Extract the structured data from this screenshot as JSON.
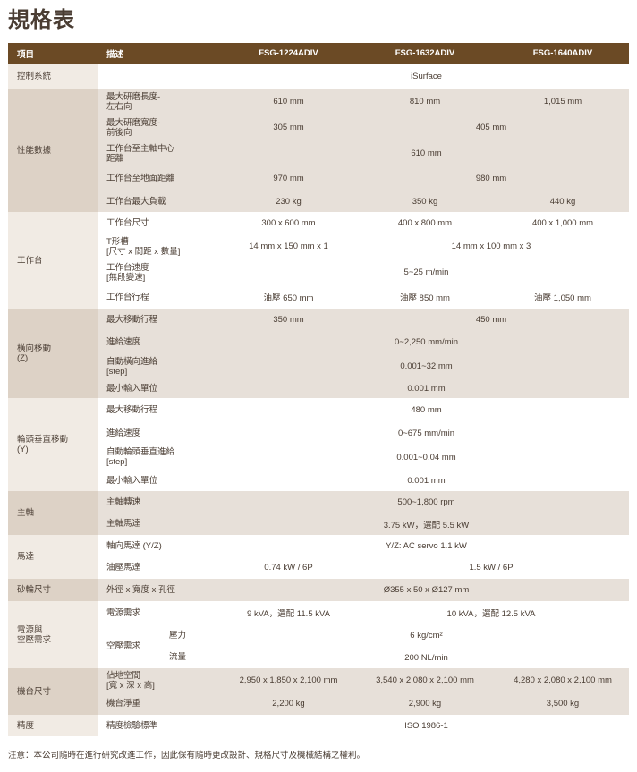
{
  "title": "規格表",
  "header": {
    "item": "項目",
    "desc": "描述",
    "models": [
      "FSG-1224ADIV",
      "FSG-1632ADIV",
      "FSG-1640ADIV"
    ]
  },
  "colors": {
    "header_bg": "#6b4a25",
    "shaded_row": "#e7e0d9",
    "category_shaded": "#ddd2c6",
    "category_plain": "#f1ebe4"
  },
  "groups": [
    {
      "category": "控制系統",
      "shaded": false,
      "rows": [
        {
          "desc": "",
          "values": [
            {
              "text": "iSurface",
              "span": 3
            }
          ]
        }
      ]
    },
    {
      "category": "性能數據",
      "shaded": true,
      "rows": [
        {
          "desc": "最大研磨長度-\n左右向",
          "values": [
            {
              "text": "610 mm",
              "span": 1
            },
            {
              "text": "810 mm",
              "span": 1
            },
            {
              "text": "1,015 mm",
              "span": 1
            }
          ]
        },
        {
          "desc": "最大研磨寬度-\n前後向",
          "values": [
            {
              "text": "305 mm",
              "span": 1
            },
            {
              "text": "405 mm",
              "span": 2
            }
          ]
        },
        {
          "desc": "工作台至主軸中心\n距離",
          "values": [
            {
              "text": "610 mm",
              "span": 3
            }
          ]
        },
        {
          "desc": "工作台至地面距離",
          "values": [
            {
              "text": "970 mm",
              "span": 1
            },
            {
              "text": "980 mm",
              "span": 2
            }
          ]
        },
        {
          "desc": "工作台最大負載",
          "values": [
            {
              "text": "230 kg",
              "span": 1
            },
            {
              "text": "350 kg",
              "span": 1
            },
            {
              "text": "440 kg",
              "span": 1
            }
          ]
        }
      ]
    },
    {
      "category": "工作台",
      "shaded": false,
      "rows": [
        {
          "desc": "工作台尺寸",
          "values": [
            {
              "text": "300 x 600 mm",
              "span": 1
            },
            {
              "text": "400 x 800 mm",
              "span": 1
            },
            {
              "text": "400 x 1,000 mm",
              "span": 1
            }
          ]
        },
        {
          "desc": "T形槽\n[尺寸 x 間距 x 數量]",
          "values": [
            {
              "text": "14 mm x 150 mm x 1",
              "span": 1
            },
            {
              "text": "14 mm x 100 mm x 3",
              "span": 2
            }
          ]
        },
        {
          "desc": "工作台速度\n[無段變速]",
          "values": [
            {
              "text": "5~25 m/min",
              "span": 3
            }
          ]
        },
        {
          "desc": "工作台行程",
          "values": [
            {
              "text": "油壓 650 mm",
              "span": 1
            },
            {
              "text": "油壓 850 mm",
              "span": 1
            },
            {
              "text": "油壓 1,050 mm",
              "span": 1
            }
          ]
        }
      ]
    },
    {
      "category": "橫向移動\n(Z)",
      "shaded": true,
      "rows": [
        {
          "desc": "最大移動行程",
          "values": [
            {
              "text": "350 mm",
              "span": 1
            },
            {
              "text": "450 mm",
              "span": 2
            }
          ]
        },
        {
          "desc": "進給速度",
          "values": [
            {
              "text": "0~2,250 mm/min",
              "span": 3
            }
          ]
        },
        {
          "desc": "自動橫向進給\n[step]",
          "values": [
            {
              "text": "0.001~32 mm",
              "span": 3
            }
          ]
        },
        {
          "desc": "最小輸入單位",
          "values": [
            {
              "text": "0.001 mm",
              "span": 3
            }
          ]
        }
      ]
    },
    {
      "category": "輪頭垂直移動\n(Y)",
      "shaded": false,
      "rows": [
        {
          "desc": "最大移動行程",
          "values": [
            {
              "text": "480 mm",
              "span": 3
            }
          ]
        },
        {
          "desc": "進給速度",
          "values": [
            {
              "text": "0~675 mm/min",
              "span": 3
            }
          ]
        },
        {
          "desc": "自動輪頭垂直進給\n[step]",
          "values": [
            {
              "text": "0.001~0.04 mm",
              "span": 3
            }
          ]
        },
        {
          "desc": "最小輸入單位",
          "values": [
            {
              "text": "0.001 mm",
              "span": 3
            }
          ]
        }
      ]
    },
    {
      "category": "主軸",
      "shaded": true,
      "rows": [
        {
          "desc": "主軸轉速",
          "values": [
            {
              "text": "500~1,800 rpm",
              "span": 3
            }
          ]
        },
        {
          "desc": "主軸馬達",
          "values": [
            {
              "text": "3.75 kW，選配 5.5 kW",
              "span": 3
            }
          ]
        }
      ]
    },
    {
      "category": "馬達",
      "shaded": false,
      "rows": [
        {
          "desc": "軸向馬達 (Y/Z)",
          "values": [
            {
              "text": "Y/Z: AC servo 1.1 kW",
              "span": 3
            }
          ]
        },
        {
          "desc": "油壓馬達",
          "values": [
            {
              "text": "0.74 kW / 6P",
              "span": 1
            },
            {
              "text": "1.5 kW / 6P",
              "span": 2
            }
          ]
        }
      ]
    },
    {
      "category": "砂輪尺寸",
      "shaded": true,
      "rows": [
        {
          "desc": "外徑 x 寬度 x 孔徑",
          "values": [
            {
              "text": "Ø355 x 50 x Ø127 mm",
              "span": 3
            }
          ]
        }
      ]
    },
    {
      "category": "電源與\n空壓需求",
      "shaded": false,
      "rows": [
        {
          "desc": "電源需求",
          "values": [
            {
              "text": "9 kVA，選配 11.5 kVA",
              "span": 1
            },
            {
              "text": "10 kVA，選配 12.5 kVA",
              "span": 2
            }
          ]
        },
        {
          "desc": "空壓需求",
          "sub": "壓力",
          "values": [
            {
              "text": "6 kg/cm²",
              "span": 3
            }
          ]
        },
        {
          "desc": "",
          "sub": "流量",
          "values": [
            {
              "text": "200 NL/min",
              "span": 3
            }
          ]
        }
      ]
    },
    {
      "category": "機台尺寸",
      "shaded": true,
      "rows": [
        {
          "desc": "佔地空間\n[寬 x 深 x 高]",
          "values": [
            {
              "text": "2,950 x 1,850 x 2,100 mm",
              "span": 1
            },
            {
              "text": "3,540 x 2,080 x 2,100 mm",
              "span": 1
            },
            {
              "text": "4,280 x 2,080 x 2,100 mm",
              "span": 1
            }
          ]
        },
        {
          "desc": "機台淨重",
          "values": [
            {
              "text": "2,200 kg",
              "span": 1
            },
            {
              "text": "2,900 kg",
              "span": 1
            },
            {
              "text": "3,500 kg",
              "span": 1
            }
          ]
        }
      ]
    },
    {
      "category": "精度",
      "shaded": false,
      "rows": [
        {
          "desc": "精度檢驗標準",
          "values": [
            {
              "text": "ISO 1986-1",
              "span": 3
            }
          ]
        }
      ]
    }
  ],
  "note": "注意：本公司隨時在進行研究改進工作，因此保有隨時更改設計、規格尺寸及機械結構之權利。"
}
